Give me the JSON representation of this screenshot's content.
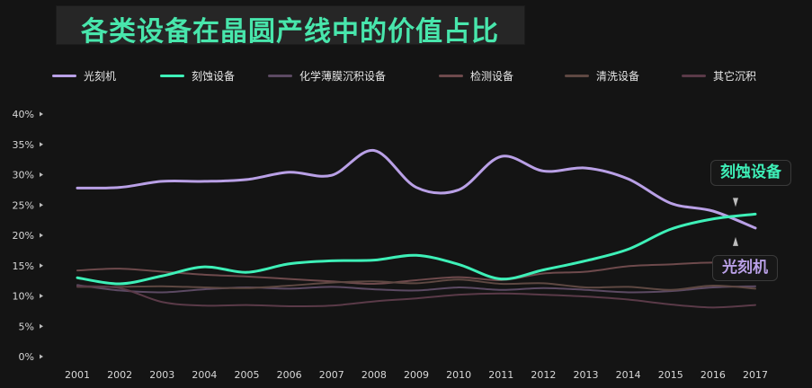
{
  "chart_data": {
    "type": "line",
    "title": "各类设备在晶圆产线中的价值占比",
    "xlabel": "",
    "ylabel": "",
    "x": [
      "2001",
      "2002",
      "2003",
      "2004",
      "2005",
      "2006",
      "2007",
      "2008",
      "2009",
      "2010",
      "2011",
      "2012",
      "2013",
      "2014",
      "2015",
      "2016",
      "2017"
    ],
    "ylim": [
      0,
      40
    ],
    "yticks": [
      "0%",
      "5%",
      "10%",
      "15%",
      "20%",
      "25%",
      "30%",
      "35%",
      "40%"
    ],
    "grid": false,
    "legend": "top",
    "series": [
      {
        "name": "光刻机",
        "color": "#b9a0e6",
        "width": 3,
        "values": [
          27.8,
          27.9,
          28.9,
          28.9,
          29.2,
          30.4,
          29.9,
          34.0,
          27.9,
          27.5,
          33.0,
          30.6,
          31.1,
          29.3,
          25.3,
          24.0,
          21.2
        ]
      },
      {
        "name": "刻蚀设备",
        "color": "#3ef0b8",
        "width": 3,
        "values": [
          13.0,
          12.0,
          13.3,
          14.8,
          13.9,
          15.3,
          15.8,
          15.9,
          16.7,
          15.2,
          12.8,
          14.3,
          15.8,
          17.7,
          21.0,
          22.7,
          23.5
        ]
      },
      {
        "name": "化学薄膜沉积设备",
        "color": "#5c4a63",
        "width": 2,
        "values": [
          11.8,
          10.9,
          10.6,
          11.1,
          11.4,
          11.2,
          11.5,
          11.1,
          10.9,
          11.4,
          11.0,
          11.3,
          11.0,
          10.6,
          10.8,
          11.4,
          11.6
        ]
      },
      {
        "name": "检测设备",
        "color": "#6e4a4c",
        "width": 2,
        "values": [
          14.2,
          14.5,
          14.0,
          13.5,
          13.2,
          12.8,
          12.4,
          12.0,
          12.6,
          13.1,
          12.6,
          13.7,
          14.0,
          14.9,
          15.2,
          15.5,
          15.1
        ]
      },
      {
        "name": "清洗设备",
        "color": "#5e4842",
        "width": 2,
        "values": [
          11.5,
          11.5,
          11.6,
          11.4,
          11.3,
          11.7,
          12.2,
          12.4,
          12.1,
          12.7,
          12.0,
          12.1,
          11.4,
          11.5,
          11.0,
          11.7,
          11.2
        ]
      },
      {
        "name": "其它沉积",
        "color": "#5a3a48",
        "width": 2,
        "values": [
          11.6,
          11.3,
          9.0,
          8.4,
          8.5,
          8.3,
          8.4,
          9.1,
          9.6,
          10.2,
          10.4,
          10.2,
          9.9,
          9.4,
          8.6,
          8.1,
          8.5
        ]
      }
    ],
    "annotations": [
      {
        "text": "刻蚀设备",
        "series": "刻蚀设备"
      },
      {
        "text": "光刻机",
        "series": "光刻机"
      }
    ]
  }
}
